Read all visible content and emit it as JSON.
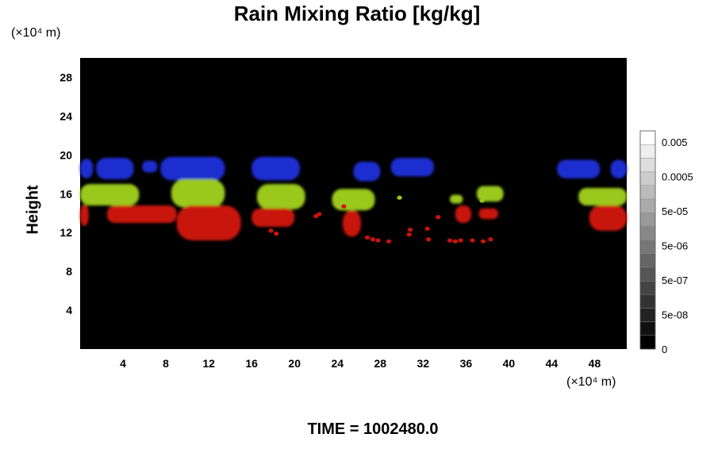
{
  "chart_data": {
    "type": "heatmap",
    "title": "Rain Mixing Ratio [kg/kg]",
    "ylabel": "Height",
    "x_unit": "(×10⁴ m)",
    "y_unit": "(×10⁴ m)",
    "x_ticks": [
      "4",
      "8",
      "12",
      "16",
      "20",
      "24",
      "28",
      "32",
      "36",
      "40",
      "44",
      "48"
    ],
    "y_ticks": [
      "4",
      "8",
      "12",
      "16",
      "20",
      "24",
      "28"
    ],
    "xlim": [
      0,
      51
    ],
    "ylim": [
      0,
      30
    ],
    "colorbar_labels": [
      "0.005",
      "0.0005",
      "5e-05",
      "5e-06",
      "5e-07",
      "5e-08",
      "0"
    ],
    "colors": {
      "background": "#000000",
      "upper": "#1e2fd0",
      "middle": "#9ac81e",
      "lower": "#c8140c"
    },
    "blobs": [
      {
        "layer": "upper",
        "x0": 0.0,
        "x1": 1.2,
        "y0": 17.6,
        "y1": 19.6
      },
      {
        "layer": "upper",
        "x0": 1.5,
        "x1": 5.0,
        "y0": 17.5,
        "y1": 19.7
      },
      {
        "layer": "upper",
        "x0": 5.8,
        "x1": 7.2,
        "y0": 18.2,
        "y1": 19.4
      },
      {
        "layer": "upper",
        "x0": 7.5,
        "x1": 13.5,
        "y0": 17.4,
        "y1": 19.8
      },
      {
        "layer": "upper",
        "x0": 16.0,
        "x1": 20.5,
        "y0": 17.4,
        "y1": 19.8
      },
      {
        "layer": "upper",
        "x0": 25.5,
        "x1": 28.0,
        "y0": 17.3,
        "y1": 19.3
      },
      {
        "layer": "upper",
        "x0": 29.0,
        "x1": 33.0,
        "y0": 17.8,
        "y1": 19.7
      },
      {
        "layer": "upper",
        "x0": 44.5,
        "x1": 48.5,
        "y0": 17.6,
        "y1": 19.5
      },
      {
        "layer": "upper",
        "x0": 49.5,
        "x1": 51.0,
        "y0": 17.6,
        "y1": 19.5
      },
      {
        "layer": "middle",
        "x0": 0.0,
        "x1": 5.5,
        "y0": 14.8,
        "y1": 17.0
      },
      {
        "layer": "middle",
        "x0": 8.5,
        "x1": 13.5,
        "y0": 14.6,
        "y1": 17.5
      },
      {
        "layer": "middle",
        "x0": 16.5,
        "x1": 21.0,
        "y0": 14.4,
        "y1": 17.0
      },
      {
        "layer": "middle",
        "x0": 23.5,
        "x1": 27.5,
        "y0": 14.3,
        "y1": 16.5
      },
      {
        "layer": "middle",
        "x0": 34.5,
        "x1": 35.7,
        "y0": 15.0,
        "y1": 15.9
      },
      {
        "layer": "middle",
        "x0": 37.0,
        "x1": 39.5,
        "y0": 15.2,
        "y1": 16.8
      },
      {
        "layer": "middle",
        "x0": 46.5,
        "x1": 51.0,
        "y0": 14.8,
        "y1": 16.6
      },
      {
        "layer": "lower",
        "x0": 0.0,
        "x1": 0.8,
        "y0": 12.7,
        "y1": 14.9
      },
      {
        "layer": "lower",
        "x0": 2.5,
        "x1": 9.0,
        "y0": 13.0,
        "y1": 14.8
      },
      {
        "layer": "lower",
        "x0": 9.0,
        "x1": 15.0,
        "y0": 11.2,
        "y1": 14.8
      },
      {
        "layer": "lower",
        "x0": 16.0,
        "x1": 20.0,
        "y0": 12.6,
        "y1": 14.5
      },
      {
        "layer": "lower",
        "x0": 24.5,
        "x1": 26.2,
        "y0": 11.6,
        "y1": 14.3
      },
      {
        "layer": "lower",
        "x0": 35.0,
        "x1": 36.5,
        "y0": 13.0,
        "y1": 14.8
      },
      {
        "layer": "lower",
        "x0": 37.2,
        "x1": 39.0,
        "y0": 13.4,
        "y1": 14.5
      },
      {
        "layer": "lower",
        "x0": 47.5,
        "x1": 51.0,
        "y0": 12.2,
        "y1": 14.8
      }
    ],
    "dots": [
      {
        "x": 17.8,
        "y": 12.2
      },
      {
        "x": 18.3,
        "y": 11.9
      },
      {
        "x": 22.0,
        "y": 13.7
      },
      {
        "x": 22.3,
        "y": 13.9
      },
      {
        "x": 26.8,
        "y": 11.5
      },
      {
        "x": 27.3,
        "y": 11.3
      },
      {
        "x": 27.8,
        "y": 11.2
      },
      {
        "x": 28.8,
        "y": 11.1
      },
      {
        "x": 30.7,
        "y": 11.8
      },
      {
        "x": 30.8,
        "y": 12.3
      },
      {
        "x": 32.4,
        "y": 12.4
      },
      {
        "x": 32.5,
        "y": 11.3
      },
      {
        "x": 33.4,
        "y": 13.6
      },
      {
        "x": 34.5,
        "y": 11.2
      },
      {
        "x": 35.0,
        "y": 11.1
      },
      {
        "x": 35.5,
        "y": 11.2
      },
      {
        "x": 36.6,
        "y": 11.2
      },
      {
        "x": 37.6,
        "y": 11.1
      },
      {
        "x": 38.3,
        "y": 11.3
      },
      {
        "x": 24.6,
        "y": 14.7
      },
      {
        "x": 29.8,
        "y": 15.6
      },
      {
        "x": 37.5,
        "y": 15.3
      }
    ]
  },
  "footer": {
    "time_label": "TIME = 1002480.0"
  }
}
